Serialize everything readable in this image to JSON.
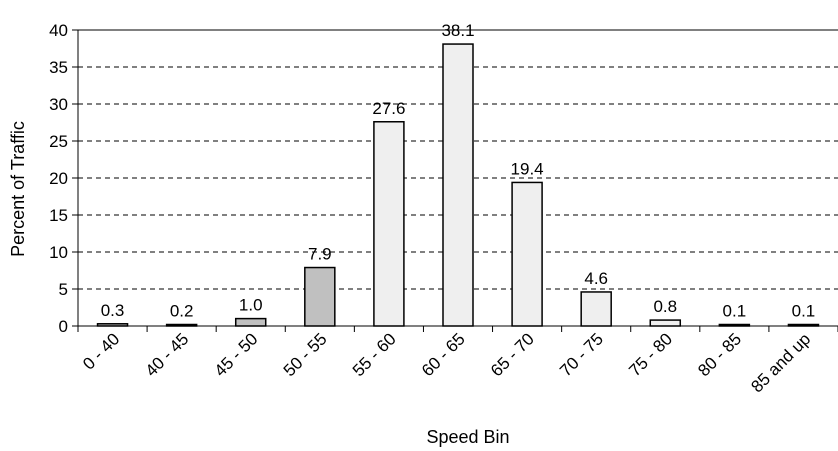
{
  "chart_data": {
    "type": "bar",
    "title": "",
    "xlabel": "Speed Bin",
    "ylabel": "Percent of Traffic",
    "ylim": [
      0,
      40
    ],
    "yticks": [
      0,
      5,
      10,
      15,
      20,
      25,
      30,
      35,
      40
    ],
    "grid": "horizontal dashed",
    "categories": [
      "0 - 40",
      "40 - 45",
      "45 - 50",
      "50 - 55",
      "55 - 60",
      "60 - 65",
      "65 - 70",
      "70 - 75",
      "75 - 80",
      "80 - 85",
      "85 and up"
    ],
    "values": [
      0.3,
      0.2,
      1.0,
      7.9,
      27.6,
      38.1,
      19.4,
      4.6,
      0.8,
      0.1,
      0.1
    ],
    "data_labels": [
      "0.3",
      "0.2",
      "1.0",
      "7.9",
      "27.6",
      "38.1",
      "19.4",
      "4.6",
      "0.8",
      "0.1",
      "0.1"
    ],
    "bar_colors": [
      "#c0c0c0",
      "#c0c0c0",
      "#c0c0c0",
      "#c0c0c0",
      "#efefef",
      "#efefef",
      "#efefef",
      "#efefef",
      "#efefef",
      "#efefef",
      "#efefef"
    ],
    "bar_stroke": "#000000"
  }
}
